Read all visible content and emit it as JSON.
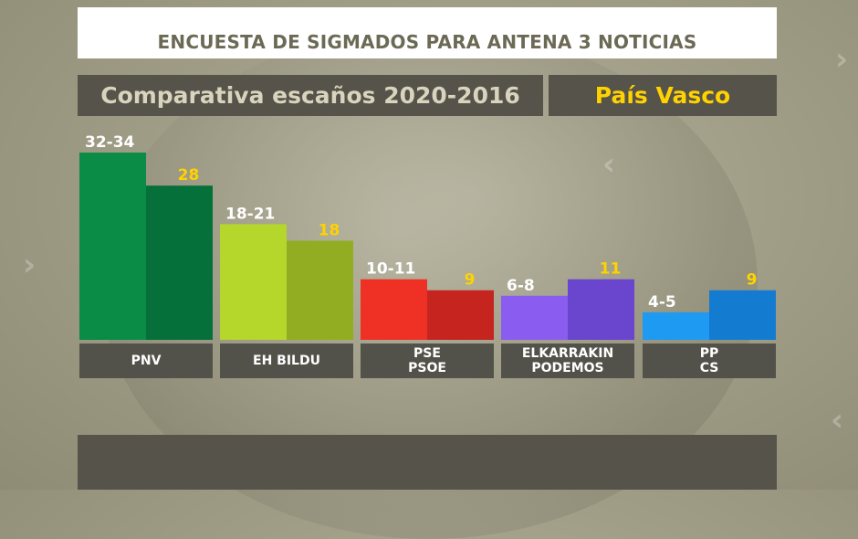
{
  "header": {
    "title": "ENCUESTA DE SIGMADOS PARA ANTENA 3 NOTICIAS",
    "subtitle": "Comparativa escaños 2020-2016",
    "region": "País Vasco"
  },
  "chart_data": {
    "type": "bar",
    "title": "Comparativa escaños 2020-2016",
    "categories": [
      "PNV",
      "EH BILDU",
      "PSE\nPSOE",
      "ELKARRAKIN\nPODEMOS",
      "PP\nCS"
    ],
    "series": [
      {
        "labels": [
          "32-34",
          "18-21",
          "10-11",
          "6-8",
          "4-5"
        ],
        "values": [
          34,
          21,
          11,
          8,
          5
        ],
        "colors": [
          "#0a8c46",
          "#b5d62a",
          "#ee3124",
          "#8a5cf0",
          "#1e9af2"
        ]
      },
      {
        "labels": [
          "28",
          "18",
          "9",
          "11",
          "9"
        ],
        "values": [
          28,
          18,
          9,
          11,
          9
        ],
        "colors": [
          "#06703a",
          "#93ad22",
          "#c5241f",
          "#6a46cf",
          "#137cd0"
        ]
      }
    ],
    "ylim": [
      0,
      34
    ],
    "label_colors": [
      "#ffffff",
      "#ffd200"
    ]
  }
}
